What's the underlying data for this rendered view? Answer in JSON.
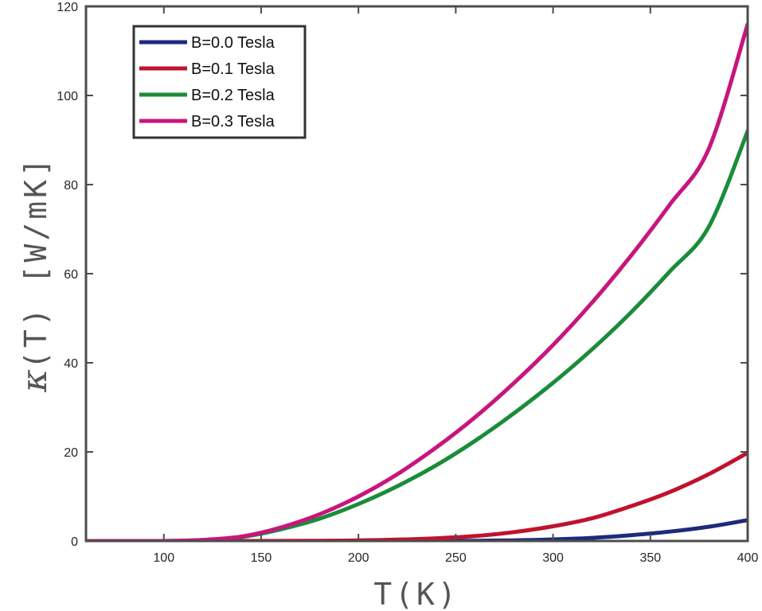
{
  "chart_data": {
    "type": "line",
    "xlabel": "T(K)",
    "ylabel_symbol": "κ",
    "ylabel_rest": "(T) [W/mK]",
    "xlim": [
      60,
      400
    ],
    "ylim": [
      0,
      120
    ],
    "xticks": [
      "100",
      "150",
      "200",
      "250",
      "300",
      "350",
      "400"
    ],
    "yticks": [
      "0",
      "20",
      "40",
      "60",
      "80",
      "100",
      "120"
    ],
    "grid": false,
    "legend_position": "top-left",
    "x": [
      60,
      80,
      100,
      120,
      140,
      160,
      180,
      200,
      220,
      240,
      260,
      280,
      300,
      320,
      340,
      360,
      380,
      400
    ],
    "series": [
      {
        "name": "B=0.0 Tesla",
        "color": "#1f2a7c",
        "values": [
          0,
          0,
          0,
          0,
          0,
          0,
          0,
          0,
          0,
          0,
          0.05,
          0.15,
          0.35,
          0.7,
          1.3,
          2.1,
          3.2,
          4.7
        ]
      },
      {
        "name": "B=0.1 Tesla",
        "color": "#c0122e",
        "values": [
          0,
          0,
          0,
          0,
          0,
          0.01,
          0.05,
          0.12,
          0.3,
          0.6,
          1.1,
          2.0,
          3.3,
          5.1,
          7.8,
          11.0,
          15.0,
          19.8
        ]
      },
      {
        "name": "B=0.2 Tesla",
        "color": "#1a8c3a",
        "values": [
          0,
          0,
          0,
          0.2,
          0.9,
          2.6,
          5.0,
          8.3,
          12.3,
          17.0,
          22.5,
          28.7,
          35.5,
          43.0,
          51.3,
          60.5,
          70.5,
          92.0
        ]
      },
      {
        "name": "B=0.3 Tesla",
        "color": "#c8157e",
        "values": [
          0,
          0,
          0,
          0.25,
          1.0,
          3.0,
          6.0,
          10.0,
          15.0,
          21.0,
          27.8,
          35.5,
          44.0,
          53.5,
          64.0,
          75.5,
          88.0,
          116.0
        ]
      }
    ]
  }
}
